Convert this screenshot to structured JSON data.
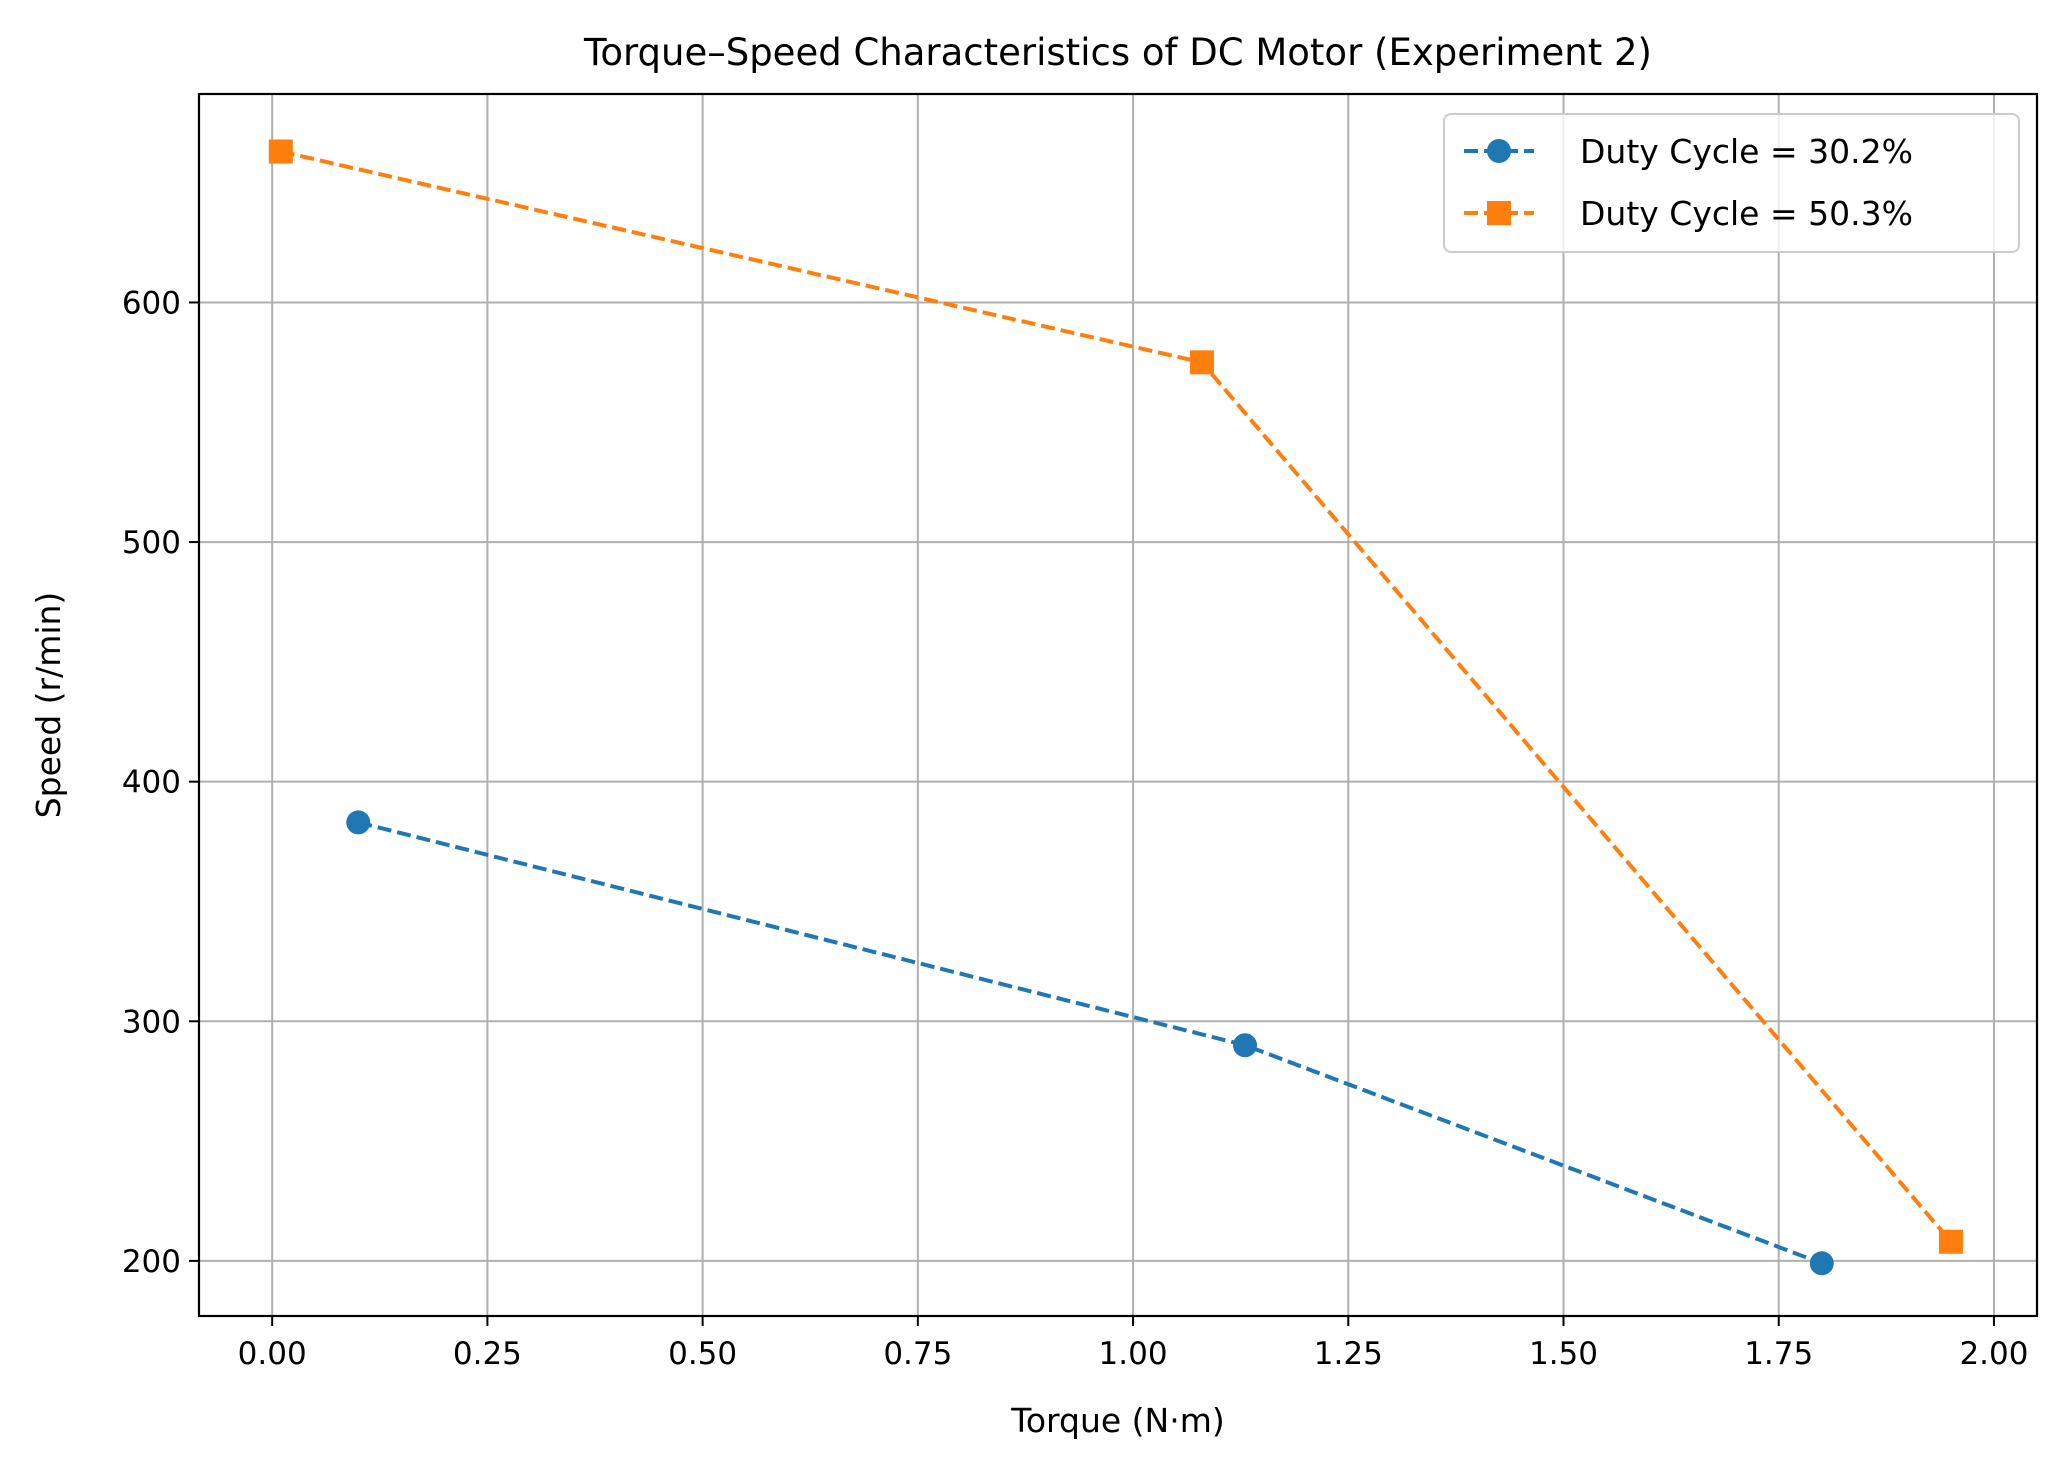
{
  "chart_data": {
    "type": "line",
    "title": "Torque–Speed Characteristics of DC Motor (Experiment 2)",
    "xlabel": "Torque (N·m)",
    "ylabel": "Speed (r/min)",
    "xlim": [
      -0.085,
      2.05
    ],
    "ylim": [
      177,
      687
    ],
    "xticks": [
      0.0,
      0.25,
      0.5,
      0.75,
      1.0,
      1.25,
      1.5,
      1.75,
      2.0
    ],
    "xtick_labels": [
      "0.00",
      "0.25",
      "0.50",
      "0.75",
      "1.00",
      "1.25",
      "1.50",
      "1.75",
      "2.00"
    ],
    "yticks": [
      200,
      300,
      400,
      500,
      600
    ],
    "ytick_labels": [
      "200",
      "300",
      "400",
      "500",
      "600"
    ],
    "grid": true,
    "legend_position": "top-right",
    "series": [
      {
        "name": "Duty Cycle = 30.2%",
        "color": "#1f77b4",
        "marker": "circle",
        "line_style": "dashed",
        "x": [
          0.1,
          1.13,
          1.8
        ],
        "y": [
          383,
          290,
          199
        ]
      },
      {
        "name": "Duty Cycle = 50.3%",
        "color": "#ff7f0e",
        "marker": "square",
        "line_style": "dashed",
        "x": [
          0.01,
          1.08,
          1.95
        ],
        "y": [
          663,
          575,
          208
        ]
      }
    ]
  }
}
